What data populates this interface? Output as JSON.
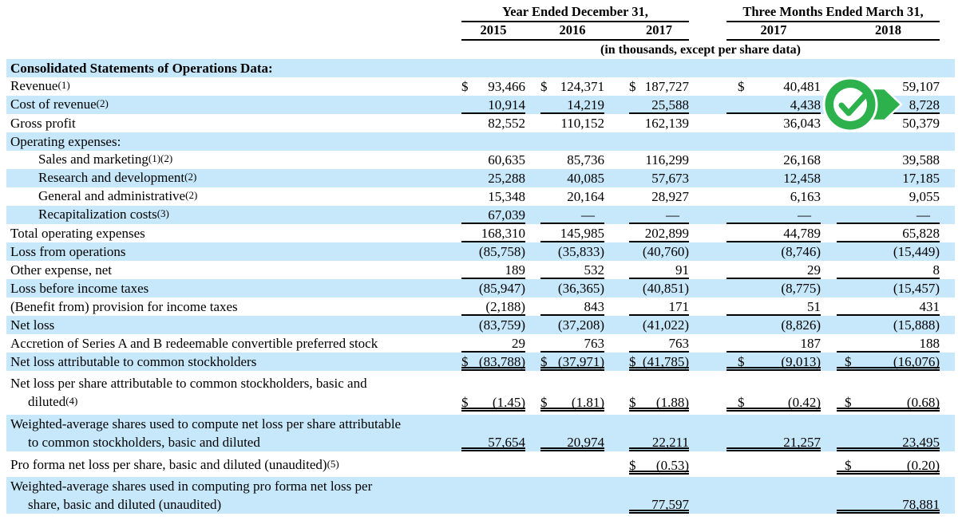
{
  "colors": {
    "row_highlight": "#c7e8fb",
    "check_green": "#2cb14d",
    "rule": "#000000",
    "text": "#000000"
  },
  "header": {
    "group1": "Year Ended December 31,",
    "group2": "Three Months Ended March 31,",
    "years": [
      "2015",
      "2016",
      "2017",
      "2017",
      "2018"
    ],
    "note": "(in thousands, except per share data)"
  },
  "badge": {
    "icon": "check-icon",
    "pointer": "right-arrow",
    "color": "#2cb14d"
  },
  "table": {
    "currency_symbol": "$",
    "rows": [
      {
        "name": "section-header",
        "bold": true,
        "bg": "blue",
        "lines": [
          {
            "text": "Consolidated Statements of Operations Data:"
          }
        ],
        "cells": []
      },
      {
        "name": "revenue",
        "bg": "white",
        "lines": [
          {
            "text": "Revenue",
            "sup": "(1)"
          }
        ],
        "cells": [
          {
            "d": true,
            "v": "93,466"
          },
          {
            "d": true,
            "v": "124,371"
          },
          {
            "d": true,
            "v": "187,727"
          },
          {
            "d": true,
            "v": "40,481"
          },
          {
            "d": true,
            "v": "59,107"
          }
        ]
      },
      {
        "name": "cost-of-revenue",
        "bg": "blue",
        "lines": [
          {
            "text": "Cost of revenue",
            "sup": "(2)"
          }
        ],
        "cells": [
          {
            "v": "10,914",
            "u": "s"
          },
          {
            "v": "14,219",
            "u": "s"
          },
          {
            "v": "25,588",
            "u": "s"
          },
          {
            "v": "4,438",
            "u": "s"
          },
          {
            "v": "8,728",
            "u": "s"
          }
        ]
      },
      {
        "name": "gross-profit",
        "bg": "white",
        "lines": [
          {
            "text": "Gross profit"
          }
        ],
        "cells": [
          {
            "v": "82,552"
          },
          {
            "v": "110,152"
          },
          {
            "v": "162,139"
          },
          {
            "v": "36,043"
          },
          {
            "v": "50,379"
          }
        ]
      },
      {
        "name": "operating-expenses-header",
        "bg": "blue",
        "lines": [
          {
            "text": "Operating expenses:"
          }
        ],
        "cells": []
      },
      {
        "name": "sales-and-marketing",
        "bg": "white",
        "indent": true,
        "lines": [
          {
            "text": "Sales and marketing",
            "sup": "(1)(2)"
          }
        ],
        "cells": [
          {
            "v": "60,635"
          },
          {
            "v": "85,736"
          },
          {
            "v": "116,299"
          },
          {
            "v": "26,168"
          },
          {
            "v": "39,588"
          }
        ]
      },
      {
        "name": "research-and-development",
        "bg": "blue",
        "indent": true,
        "lines": [
          {
            "text": "Research and development",
            "sup": "(2)"
          }
        ],
        "cells": [
          {
            "v": "25,288"
          },
          {
            "v": "40,085"
          },
          {
            "v": "57,673"
          },
          {
            "v": "12,458"
          },
          {
            "v": "17,185"
          }
        ]
      },
      {
        "name": "general-and-administrative",
        "bg": "white",
        "indent": true,
        "lines": [
          {
            "text": "General and administrative",
            "sup": "(2)"
          }
        ],
        "cells": [
          {
            "v": "15,348"
          },
          {
            "v": "20,164"
          },
          {
            "v": "28,927"
          },
          {
            "v": "6,163"
          },
          {
            "v": "9,055"
          }
        ]
      },
      {
        "name": "recapitalization-costs",
        "bg": "blue",
        "indent": true,
        "lines": [
          {
            "text": "Recapitalization costs",
            "sup": "(3)"
          }
        ],
        "cells": [
          {
            "v": "67,039",
            "u": "s"
          },
          {
            "v": "—",
            "u": "s"
          },
          {
            "v": "—",
            "u": "s"
          },
          {
            "v": "—",
            "u": "s"
          },
          {
            "v": "—",
            "u": "s"
          }
        ]
      },
      {
        "name": "total-operating-expenses",
        "bg": "white",
        "lines": [
          {
            "text": "Total operating expenses"
          }
        ],
        "cells": [
          {
            "v": "168,310",
            "u": "s"
          },
          {
            "v": "145,985",
            "u": "s"
          },
          {
            "v": "202,899",
            "u": "s"
          },
          {
            "v": "44,789",
            "u": "s"
          },
          {
            "v": "65,828",
            "u": "s"
          }
        ]
      },
      {
        "name": "loss-from-operations",
        "bg": "blue",
        "lines": [
          {
            "text": "Loss from operations"
          }
        ],
        "cells": [
          {
            "v": "(85,758)"
          },
          {
            "v": "(35,833)"
          },
          {
            "v": "(40,760)"
          },
          {
            "v": "(8,746)"
          },
          {
            "v": "(15,449)"
          }
        ]
      },
      {
        "name": "other-expense-net",
        "bg": "white",
        "lines": [
          {
            "text": "Other expense, net"
          }
        ],
        "cells": [
          {
            "v": "189",
            "u": "s"
          },
          {
            "v": "532",
            "u": "s"
          },
          {
            "v": "91",
            "u": "s"
          },
          {
            "v": "29",
            "u": "s"
          },
          {
            "v": "8",
            "u": "s"
          }
        ]
      },
      {
        "name": "loss-before-income-taxes",
        "bg": "blue",
        "lines": [
          {
            "text": "Loss before income taxes"
          }
        ],
        "cells": [
          {
            "v": "(85,947)"
          },
          {
            "v": "(36,365)"
          },
          {
            "v": "(40,851)"
          },
          {
            "v": "(8,775)"
          },
          {
            "v": "(15,457)"
          }
        ]
      },
      {
        "name": "benefit-from-provision-for-income-taxes",
        "bg": "white",
        "lines": [
          {
            "text": "(Benefit from) provision for income taxes"
          }
        ],
        "cells": [
          {
            "v": "(2,188)",
            "u": "s"
          },
          {
            "v": "843",
            "u": "s"
          },
          {
            "v": "171",
            "u": "s"
          },
          {
            "v": "51",
            "u": "s"
          },
          {
            "v": "431",
            "u": "s"
          }
        ]
      },
      {
        "name": "net-loss",
        "bg": "blue",
        "lines": [
          {
            "text": "Net loss"
          }
        ],
        "cells": [
          {
            "v": "(83,759)"
          },
          {
            "v": "(37,208)"
          },
          {
            "v": "(41,022)"
          },
          {
            "v": "(8,826)"
          },
          {
            "v": "(15,888)"
          }
        ]
      },
      {
        "name": "accretion-preferred-stock",
        "bg": "white",
        "lines": [
          {
            "text": "Accretion of Series A and B redeemable convertible preferred stock"
          }
        ],
        "cells": [
          {
            "v": "29",
            "u": "s"
          },
          {
            "v": "763",
            "u": "s"
          },
          {
            "v": "763",
            "u": "s"
          },
          {
            "v": "187",
            "u": "s"
          },
          {
            "v": "188",
            "u": "s"
          }
        ]
      },
      {
        "name": "net-loss-attributable-to-common-stockholders",
        "bg": "blue",
        "lines": [
          {
            "text": "Net loss attributable to common stockholders"
          }
        ],
        "cells": [
          {
            "d": true,
            "v": "(83,788)",
            "u": "d"
          },
          {
            "d": true,
            "v": "(37,971)",
            "u": "d"
          },
          {
            "d": true,
            "v": "(41,785)",
            "u": "d"
          },
          {
            "d": true,
            "v": "(9,013)",
            "u": "d"
          },
          {
            "d": true,
            "v": "(16,076)",
            "u": "d"
          }
        ]
      },
      {
        "name": "net-loss-per-share",
        "bg": "white",
        "lines": [
          {
            "text": "Net loss per share attributable to common stockholders, basic and"
          },
          {
            "text": "diluted",
            "sup": "(4)"
          }
        ],
        "cells": [
          {
            "d": true,
            "v": "(1.45)",
            "u": "d"
          },
          {
            "d": true,
            "v": "(1.81)",
            "u": "d"
          },
          {
            "d": true,
            "v": "(1.88)",
            "u": "d"
          },
          {
            "d": true,
            "v": "(0.42)",
            "u": "d"
          },
          {
            "d": true,
            "v": "(0.68)",
            "u": "d"
          }
        ]
      },
      {
        "name": "weighted-average-shares",
        "bg": "blue",
        "lines": [
          {
            "text": "Weighted-average shares used to compute net loss per share attributable"
          },
          {
            "text": "to common stockholders, basic and diluted"
          }
        ],
        "cells": [
          {
            "v": "57,654",
            "u": "d"
          },
          {
            "v": "20,974",
            "u": "d"
          },
          {
            "v": "22,211",
            "u": "d"
          },
          {
            "v": "21,257",
            "u": "d"
          },
          {
            "v": "23,495",
            "u": "d"
          }
        ]
      },
      {
        "name": "pro-forma-net-loss-per-share",
        "bg": "white",
        "lines": [
          {
            "text": "Pro forma net loss per share, basic and diluted (unaudited)",
            "sup": "(5)"
          }
        ],
        "cells": [
          {
            "v": ""
          },
          {
            "v": ""
          },
          {
            "d": true,
            "v": "(0.53)",
            "u": "d"
          },
          {
            "v": ""
          },
          {
            "d": true,
            "v": "(0.20)",
            "u": "d"
          }
        ]
      },
      {
        "name": "weighted-average-pro-forma-shares",
        "bg": "blue",
        "lines": [
          {
            "text": "Weighted-average shares used in computing pro forma net loss per"
          },
          {
            "text": "share, basic and diluted (unaudited)"
          }
        ],
        "cells": [
          {
            "v": ""
          },
          {
            "v": ""
          },
          {
            "v": "77,597",
            "u": "d"
          },
          {
            "v": ""
          },
          {
            "v": "78,881",
            "u": "d"
          }
        ]
      }
    ]
  }
}
